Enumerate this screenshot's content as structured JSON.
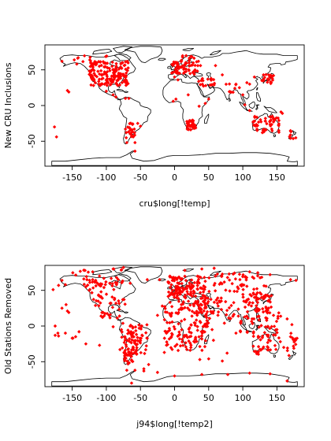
{
  "chart_data": [
    {
      "type": "scatter",
      "xlabel": "cru$long[!temp]",
      "ylabel": "New CRU Inclusions",
      "xlim": [
        -190,
        190
      ],
      "ylim": [
        -85,
        85
      ],
      "xticks": [
        -150,
        -100,
        -50,
        0,
        50,
        100,
        150
      ],
      "yticks": [
        -50,
        0,
        50
      ],
      "grid": false,
      "marker_color": "#ff0000",
      "background_map": "world-coastlines",
      "clusters": [
        {
          "region": "north-america",
          "lon": [
            -125,
            -68
          ],
          "lat": [
            28,
            62
          ],
          "count": 170
        },
        {
          "region": "alaska-canada-north",
          "lon": [
            -145,
            -95
          ],
          "lat": [
            58,
            70
          ],
          "count": 14
        },
        {
          "region": "europe",
          "lon": [
            -5,
            35
          ],
          "lat": [
            42,
            62
          ],
          "count": 55
        },
        {
          "region": "scandinavia",
          "lon": [
            10,
            30
          ],
          "lat": [
            58,
            70
          ],
          "count": 10
        },
        {
          "region": "middle-east",
          "lon": [
            35,
            60
          ],
          "lat": [
            25,
            38
          ],
          "count": 18
        },
        {
          "region": "india",
          "lon": [
            72,
            90
          ],
          "lat": [
            18,
            32
          ],
          "count": 8
        },
        {
          "region": "japan-korea",
          "lon": [
            128,
            145
          ],
          "lat": [
            30,
            44
          ],
          "count": 18
        },
        {
          "region": "southern-africa",
          "lon": [
            18,
            32
          ],
          "lat": [
            -34,
            -20
          ],
          "count": 35
        },
        {
          "region": "australia",
          "lon": [
            115,
            153
          ],
          "lat": [
            -38,
            -15
          ],
          "count": 50
        },
        {
          "region": "south-america-south",
          "lon": [
            -72,
            -58
          ],
          "lat": [
            -48,
            -20
          ],
          "count": 22
        },
        {
          "region": "new-zealand",
          "lon": [
            168,
            178
          ],
          "lat": [
            -47,
            -35
          ],
          "count": 8
        }
      ],
      "points": [
        [
          -157,
          21
        ],
        [
          -155,
          19
        ],
        [
          -176,
          -30
        ],
        [
          -173,
          -44
        ],
        [
          -147,
          64
        ],
        [
          -165,
          62
        ],
        [
          -100,
          20
        ],
        [
          -90,
          15
        ],
        [
          -86,
          12
        ],
        [
          -72,
          10
        ],
        [
          -67,
          10
        ],
        [
          -54,
          -25
        ],
        [
          -50,
          -29
        ],
        [
          -72,
          -33
        ],
        [
          -70,
          -52
        ],
        [
          -58,
          -52
        ],
        [
          -58,
          -64
        ],
        [
          -2,
          6
        ],
        [
          2,
          9
        ],
        [
          20,
          15
        ],
        [
          36,
          -1
        ],
        [
          45,
          3
        ],
        [
          50,
          9
        ],
        [
          106,
          32
        ],
        [
          110,
          30
        ],
        [
          117,
          40
        ],
        [
          145,
          42
        ],
        [
          156,
          -9
        ],
        [
          158,
          -11
        ],
        [
          145,
          -18
        ],
        [
          147,
          -20
        ],
        [
          5,
          36
        ],
        [
          0,
          40
        ],
        [
          4,
          45
        ],
        [
          30,
          50
        ],
        [
          38,
          56
        ],
        [
          60,
          56
        ],
        [
          70,
          43
        ],
        [
          90,
          30
        ],
        [
          95,
          25
        ],
        [
          100,
          15
        ],
        [
          103,
          1
        ],
        [
          110,
          -7
        ]
      ]
    },
    {
      "type": "scatter",
      "xlabel": "j94$long[!temp2]",
      "ylabel": "Old Stations Removed",
      "xlim": [
        -190,
        190
      ],
      "ylim": [
        -85,
        85
      ],
      "xticks": [
        -150,
        -100,
        -50,
        0,
        50,
        100,
        150
      ],
      "yticks": [
        -50,
        0,
        50
      ],
      "grid": false,
      "marker_color": "#ff0000",
      "background_map": "world-coastlines",
      "clusters": [
        {
          "region": "north-america",
          "lon": [
            -125,
            -68
          ],
          "lat": [
            28,
            62
          ],
          "count": 40
        },
        {
          "region": "canada-arctic",
          "lon": [
            -150,
            -70
          ],
          "lat": [
            55,
            80
          ],
          "count": 30
        },
        {
          "region": "central-america",
          "lon": [
            -110,
            -80
          ],
          "lat": [
            10,
            28
          ],
          "count": 14
        },
        {
          "region": "south-america",
          "lon": [
            -78,
            -40
          ],
          "lat": [
            -40,
            5
          ],
          "count": 90
        },
        {
          "region": "patagonia",
          "lon": [
            -74,
            -60
          ],
          "lat": [
            -55,
            -40
          ],
          "count": 18
        },
        {
          "region": "europe",
          "lon": [
            -10,
            45
          ],
          "lat": [
            38,
            70
          ],
          "count": 120
        },
        {
          "region": "africa",
          "lon": [
            -15,
            50
          ],
          "lat": [
            -35,
            35
          ],
          "count": 150
        },
        {
          "region": "russia-asia",
          "lon": [
            40,
            140
          ],
          "lat": [
            40,
            75
          ],
          "count": 60
        },
        {
          "region": "middle-east-india",
          "lon": [
            35,
            95
          ],
          "lat": [
            10,
            40
          ],
          "count": 45
        },
        {
          "region": "east-asia",
          "lon": [
            100,
            145
          ],
          "lat": [
            20,
            45
          ],
          "count": 50
        },
        {
          "region": "southeast-asia",
          "lon": [
            95,
            160
          ],
          "lat": [
            -10,
            20
          ],
          "count": 40
        },
        {
          "region": "australia",
          "lon": [
            115,
            153
          ],
          "lat": [
            -40,
            -12
          ],
          "count": 35
        },
        {
          "region": "new-zealand-pacific",
          "lon": [
            165,
            180
          ],
          "lat": [
            -47,
            -10
          ],
          "count": 12
        }
      ],
      "points": [
        [
          -175,
          -13
        ],
        [
          -170,
          -14
        ],
        [
          -160,
          -10
        ],
        [
          -150,
          -17
        ],
        [
          -140,
          -8
        ],
        [
          -145,
          -15
        ],
        [
          -157,
          21
        ],
        [
          -155,
          19
        ],
        [
          -178,
          51
        ],
        [
          -170,
          57
        ],
        [
          -165,
          64
        ],
        [
          -160,
          58
        ],
        [
          -130,
          55
        ],
        [
          -125,
          50
        ],
        [
          -120,
          76
        ],
        [
          -90,
          80
        ],
        [
          -75,
          82
        ],
        [
          -40,
          65
        ],
        [
          -22,
          65
        ],
        [
          -18,
          28
        ],
        [
          -25,
          15
        ],
        [
          -10,
          -8
        ],
        [
          -5,
          -16
        ],
        [
          -15,
          -37
        ],
        [
          40,
          80
        ],
        [
          58,
          81
        ],
        [
          15,
          78
        ],
        [
          60,
          70
        ],
        [
          80,
          73
        ],
        [
          110,
          76
        ],
        [
          140,
          72
        ],
        [
          170,
          65
        ],
        [
          178,
          64
        ],
        [
          77,
          -38
        ],
        [
          70,
          -49
        ],
        [
          50,
          -46
        ],
        [
          37,
          -47
        ],
        [
          -70,
          -62
        ],
        [
          -58,
          -62
        ],
        [
          -45,
          -60
        ],
        [
          -38,
          -54
        ],
        [
          -25,
          -65
        ],
        [
          0,
          -70
        ],
        [
          40,
          -68
        ],
        [
          78,
          -68
        ],
        [
          110,
          -66
        ],
        [
          140,
          -67
        ],
        [
          165,
          -77
        ],
        [
          -45,
          -63
        ],
        [
          -130,
          -25
        ],
        [
          -110,
          -27
        ],
        [
          -90,
          -1
        ],
        [
          -80,
          -33
        ],
        [
          -63,
          -80
        ],
        [
          10,
          30
        ],
        [
          48,
          20
        ],
        [
          55,
          -5
        ],
        [
          57,
          -20
        ],
        [
          73,
          4
        ],
        [
          90,
          -10
        ],
        [
          170,
          -15
        ],
        [
          177,
          -18
        ],
        [
          -149,
          -17
        ],
        [
          -171,
          -10
        ],
        [
          -175,
          0
        ],
        [
          172,
          2
        ],
        [
          165,
          10
        ],
        [
          145,
          15
        ],
        [
          135,
          8
        ],
        [
          150,
          -5
        ],
        [
          155,
          -22
        ],
        [
          160,
          -30
        ],
        [
          -165,
          25
        ],
        [
          -159,
          30
        ],
        [
          -133,
          66
        ],
        [
          -110,
          70
        ],
        [
          -95,
          60
        ],
        [
          -85,
          68
        ],
        [
          -65,
          60
        ]
      ]
    }
  ]
}
